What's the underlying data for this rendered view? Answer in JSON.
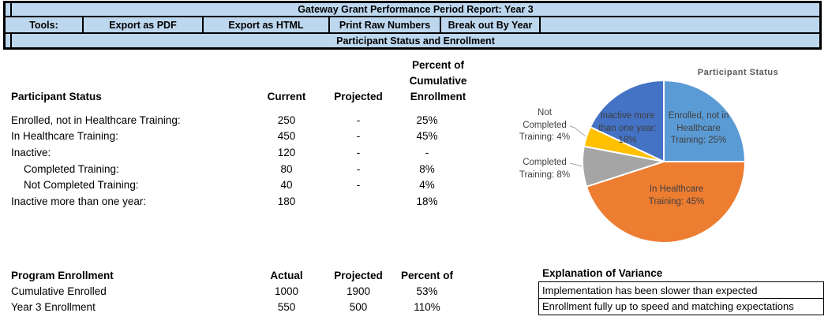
{
  "header": {
    "title": "Gateway Grant Performance Period Report: Year 3",
    "toolbar": {
      "label": "Tools:",
      "buttons": [
        "Export as PDF",
        "Export as HTML",
        "Print Raw Numbers",
        "Break out By Year"
      ]
    },
    "section": "Participant Status and Enrollment",
    "bg_color": "#BDD7EE"
  },
  "status_table": {
    "title": "Participant Status",
    "columns": [
      "Current",
      "Projected",
      "Percent of Cumulative Enrollment"
    ],
    "rows": [
      {
        "label": "Enrolled, not in Healthcare Training:",
        "current": "250",
        "projected": "-",
        "percent": "25%"
      },
      {
        "label": "In Healthcare Training:",
        "current": "450",
        "projected": "-",
        "percent": "45%"
      },
      {
        "label": "Inactive:",
        "current": "120",
        "projected": "-",
        "percent": "-"
      },
      {
        "label": "Completed Training:",
        "current": "80",
        "projected": "-",
        "percent": "8%"
      },
      {
        "label": "Not Completed Training:",
        "current": "40",
        "projected": "-",
        "percent": "4%"
      },
      {
        "label": "Inactive more than one year:",
        "current": "180",
        "projected": "",
        "percent": "18%"
      }
    ]
  },
  "enrollment_table": {
    "title": "Program Enrollment",
    "columns": [
      "Actual",
      "Projected",
      "Percent of"
    ],
    "rows": [
      {
        "label": "Cumulative Enrolled",
        "actual": "1000",
        "projected": "1900",
        "percent": "53%"
      },
      {
        "label": "Year 3 Enrollment",
        "actual": "550",
        "projected": "500",
        "percent": "110%"
      }
    ]
  },
  "variance": {
    "title": "Explanation of Variance",
    "entries": [
      "Implementation has been slower than expected",
      "Enrollment fully up to speed and matching expectations"
    ]
  },
  "chart_data": {
    "type": "pie",
    "title": "Participant Status",
    "categories": [
      "Enrolled, not in Healthcare Training",
      "In Healthcare Training",
      "Completed Training",
      "Not Completed Training",
      "Inactive more than one year"
    ],
    "values": [
      25,
      45,
      8,
      4,
      18
    ],
    "unit": "percent",
    "colors": [
      "#5B9BD5",
      "#ED7D31",
      "#A5A5A5",
      "#FFC000",
      "#4472C4"
    ],
    "start_angle_deg": 0,
    "direction": "clockwise",
    "title_color": "#595959",
    "labels": [
      "Enrolled, not in Healthcare Training: 25%",
      "In Healthcare Training: 45%",
      "Completed Training: 8%",
      "Not Completed Training: 4%",
      "Inactive more than one year: 18%"
    ]
  }
}
